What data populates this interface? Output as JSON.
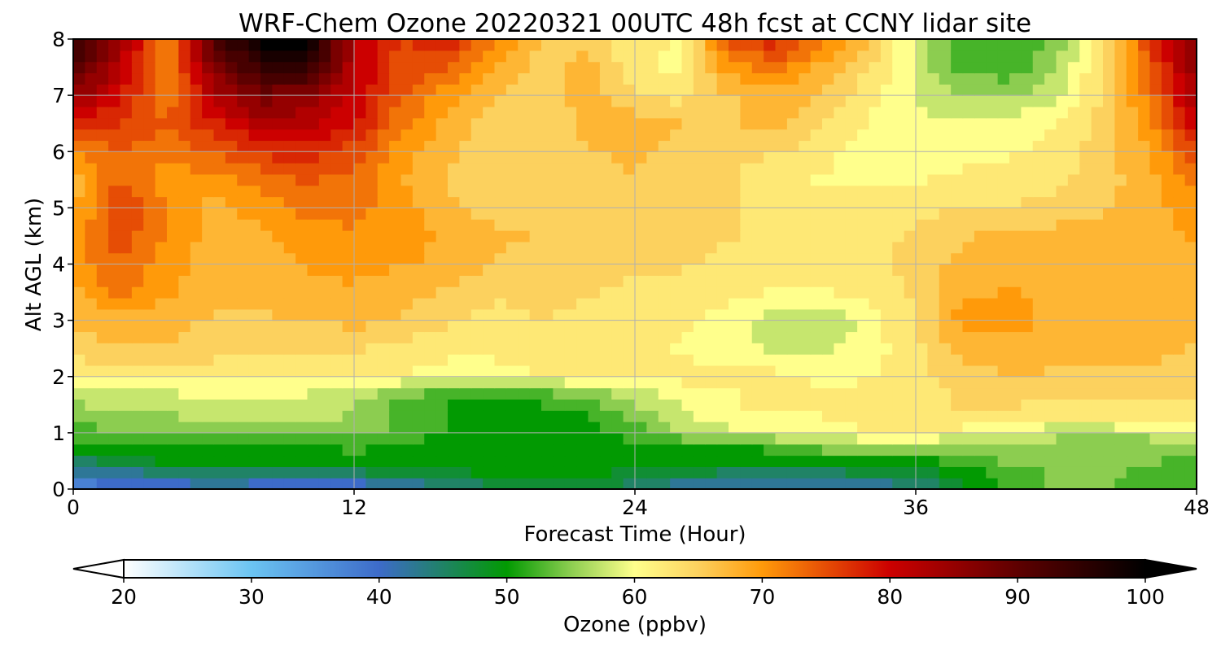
{
  "chart_data": {
    "type": "heatmap",
    "title": "WRF-Chem Ozone  20220321 00UTC 48h fcst at CCNY lidar site",
    "xlabel": "Forecast Time (Hour)",
    "ylabel": "Alt AGL (km)",
    "xlim": [
      0,
      48
    ],
    "ylim": [
      0,
      8
    ],
    "x_ticks": [
      "0",
      "12",
      "24",
      "36",
      "48"
    ],
    "y_ticks": [
      "0",
      "1",
      "2",
      "3",
      "4",
      "5",
      "6",
      "7",
      "8"
    ],
    "grid": true,
    "x": [
      0,
      2,
      4,
      6,
      8,
      10,
      12,
      14,
      16,
      18,
      20,
      22,
      24,
      26,
      28,
      30,
      32,
      34,
      36,
      38,
      40,
      42,
      44,
      46,
      48
    ],
    "y": [
      0,
      0.25,
      0.5,
      0.75,
      1,
      1.25,
      1.5,
      1.75,
      2,
      2.5,
      3,
      3.5,
      4,
      4.5,
      5,
      5.5,
      6,
      6.5,
      7,
      7.5,
      8
    ],
    "z": [
      [
        37,
        38,
        39,
        40,
        39,
        38,
        38,
        40,
        43,
        45,
        47,
        47,
        44,
        41,
        40,
        40,
        41,
        41,
        43,
        48,
        52,
        54,
        54,
        53,
        52
      ],
      [
        40,
        42,
        43,
        45,
        44,
        44,
        45,
        47,
        48,
        49,
        49,
        49,
        48,
        46,
        45,
        45,
        45,
        46,
        47,
        50,
        52,
        54,
        54,
        53,
        52
      ],
      [
        45,
        48,
        49,
        50,
        50,
        50,
        49,
        49,
        50,
        50,
        50,
        50,
        50,
        50,
        50,
        49,
        49,
        49,
        50,
        52,
        54,
        55,
        55,
        54,
        53
      ],
      [
        50,
        51,
        51,
        51,
        51,
        51,
        52,
        51,
        50,
        50,
        50,
        50,
        51,
        51,
        51,
        52,
        55,
        56,
        56,
        56,
        55,
        55,
        55,
        55,
        55
      ],
      [
        52,
        54,
        54,
        53,
        53,
        54,
        55,
        53,
        51,
        50,
        50,
        50,
        52,
        56,
        58,
        59,
        60,
        61,
        61,
        60,
        58,
        57,
        57,
        57,
        58
      ],
      [
        54,
        55,
        56,
        56,
        56,
        57,
        56,
        53,
        51,
        50,
        50,
        51,
        54,
        58,
        60,
        61,
        61,
        62,
        63,
        63,
        62,
        61,
        61,
        62,
        62
      ],
      [
        56,
        57,
        57,
        58,
        58,
        58,
        56,
        53,
        51,
        50,
        51,
        53,
        56,
        59,
        61,
        62,
        62,
        62,
        63,
        64,
        64,
        63,
        63,
        63,
        63
      ],
      [
        57,
        59,
        59,
        60,
        59,
        59,
        58,
        55,
        53,
        52,
        54,
        56,
        58,
        60,
        61,
        62,
        62,
        62,
        63,
        64,
        64,
        64,
        64,
        64,
        64
      ],
      [
        61,
        62,
        62,
        62,
        62,
        62,
        62,
        61,
        60,
        60,
        61,
        62,
        62,
        62,
        62,
        62,
        60,
        61,
        63,
        65,
        66,
        66,
        66,
        66,
        65
      ],
      [
        65,
        66,
        66,
        65,
        64,
        64,
        64,
        63,
        62,
        62,
        63,
        63,
        62,
        61,
        60,
        58,
        58,
        60,
        63,
        67,
        68,
        67,
        67,
        67,
        66
      ],
      [
        67,
        68,
        67,
        66,
        66,
        66,
        67,
        66,
        64,
        63,
        64,
        63,
        62,
        62,
        60,
        57,
        56,
        60,
        64,
        70,
        70,
        68,
        68,
        67,
        67
      ],
      [
        68,
        72,
        69,
        67,
        67,
        68,
        68,
        67,
        66,
        64,
        64,
        64,
        63,
        63,
        62,
        61,
        61,
        62,
        64,
        68,
        69,
        68,
        68,
        68,
        67
      ],
      [
        70,
        74,
        70,
        67,
        67,
        69,
        70,
        69,
        68,
        66,
        65,
        65,
        64,
        64,
        63,
        63,
        62,
        63,
        65,
        67,
        68,
        68,
        68,
        68,
        68
      ],
      [
        70,
        75,
        71,
        68,
        68,
        70,
        71,
        70,
        68,
        67,
        66,
        66,
        66,
        65,
        64,
        63,
        63,
        63,
        64,
        66,
        67,
        67,
        67,
        68,
        69
      ],
      [
        68,
        76,
        71,
        68,
        70,
        72,
        72,
        70,
        67,
        65,
        65,
        66,
        66,
        65,
        64,
        62,
        62,
        62,
        63,
        64,
        64,
        65,
        66,
        68,
        70
      ],
      [
        67,
        74,
        70,
        70,
        72,
        74,
        73,
        69,
        66,
        64,
        64,
        65,
        66,
        65,
        64,
        62,
        61,
        61,
        61,
        62,
        62,
        63,
        65,
        68,
        72
      ],
      [
        71,
        74,
        72,
        74,
        77,
        78,
        75,
        70,
        67,
        64,
        64,
        66,
        67,
        65,
        64,
        64,
        62,
        60,
        60,
        60,
        61,
        62,
        65,
        69,
        76
      ],
      [
        78,
        76,
        74,
        78,
        82,
        82,
        79,
        72,
        68,
        65,
        64,
        67,
        68,
        66,
        66,
        67,
        64,
        61,
        59,
        59,
        60,
        61,
        65,
        70,
        80
      ],
      [
        85,
        79,
        72,
        82,
        88,
        86,
        81,
        74,
        70,
        66,
        64,
        68,
        64,
        63,
        66,
        68,
        66,
        62,
        59,
        56,
        56,
        58,
        64,
        72,
        84
      ],
      [
        92,
        82,
        70,
        87,
        94,
        95,
        82,
        75,
        74,
        69,
        65,
        67,
        62,
        60,
        70,
        72,
        68,
        64,
        58,
        53,
        52,
        56,
        64,
        74,
        86
      ],
      [
        95,
        84,
        71,
        92,
        100,
        100,
        82,
        76,
        78,
        71,
        66,
        66,
        62,
        61,
        75,
        78,
        72,
        66,
        58,
        52,
        51,
        55,
        63,
        76,
        88
      ]
    ],
    "colorbar": {
      "label": "Ozone  (ppbv)",
      "min": 20,
      "max": 100,
      "ticks": [
        "20",
        "30",
        "40",
        "50",
        "60",
        "70",
        "80",
        "90",
        "100"
      ],
      "extend": "both",
      "colors": {
        "20": "#ffffff",
        "30": "#6bc4f2",
        "40": "#3d6bc9",
        "50": "#029a02",
        "55": "#8ccd50",
        "60": "#ffff8c",
        "65": "#fcd15e",
        "70": "#ff9a0a",
        "80": "#cc0000",
        "90": "#5e0000",
        "100": "#000000"
      }
    }
  }
}
